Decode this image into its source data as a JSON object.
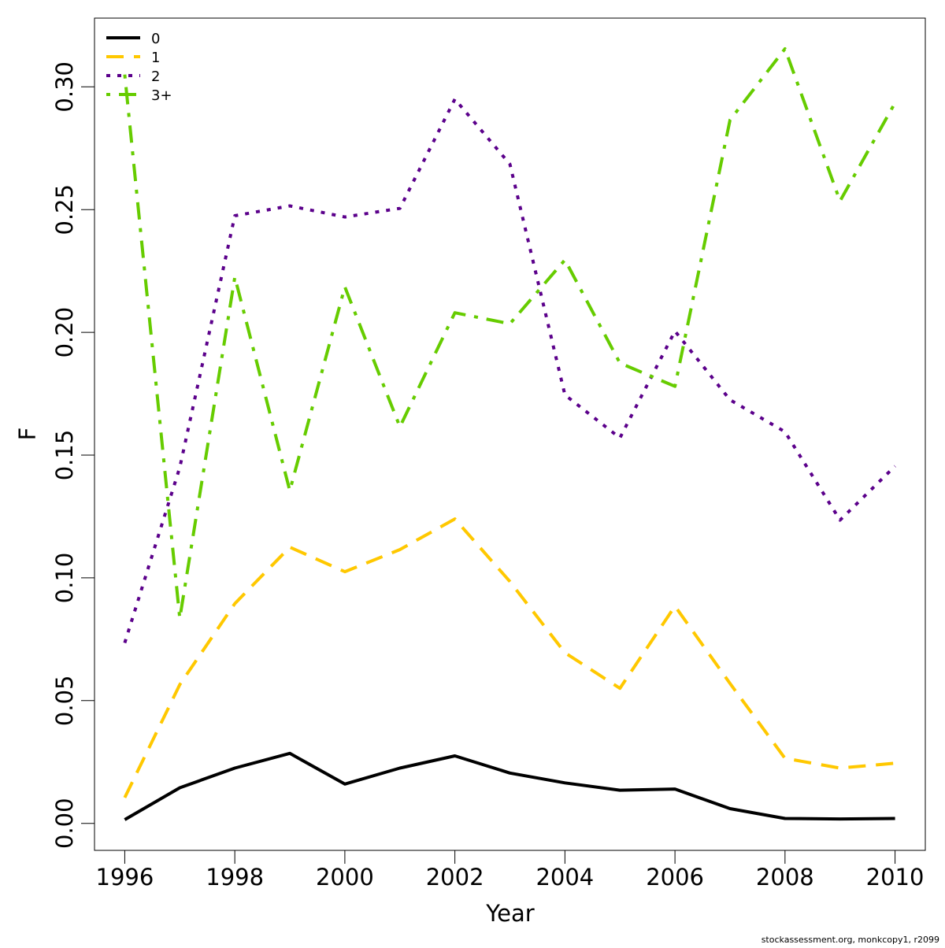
{
  "chart_data": {
    "type": "line",
    "xlabel": "Year",
    "ylabel": "F",
    "xlim": [
      1995.45,
      2010.55
    ],
    "ylim": [
      -0.011,
      0.328
    ],
    "x_ticks": [
      "1996",
      "1998",
      "2000",
      "2002",
      "2004",
      "2006",
      "2008",
      "2010"
    ],
    "y_ticks": [
      "0.00",
      "0.05",
      "0.10",
      "0.15",
      "0.20",
      "0.25",
      "0.30"
    ],
    "legend_position": "top-left",
    "grid": false,
    "x": [
      1996,
      1997,
      1998,
      1999,
      2000,
      2001,
      2002,
      2003,
      2004,
      2005,
      2006,
      2007,
      2008,
      2009,
      2010
    ],
    "series": [
      {
        "name": "0",
        "color": "#000000",
        "style": "solid",
        "values": [
          0.0015,
          0.0145,
          0.0225,
          0.0285,
          0.016,
          0.0225,
          0.0275,
          0.0205,
          0.0165,
          0.0135,
          0.014,
          0.006,
          0.002,
          0.0018,
          0.002
        ]
      },
      {
        "name": "1",
        "color": "#FFC800",
        "style": "dashed",
        "values": [
          0.0105,
          0.0565,
          0.0895,
          0.1125,
          0.1025,
          0.1115,
          0.124,
          0.0985,
          0.0695,
          0.055,
          0.0885,
          0.057,
          0.0265,
          0.0225,
          0.0245
        ]
      },
      {
        "name": "2",
        "color": "#5B008B",
        "style": "dotted",
        "values": [
          0.0735,
          0.145,
          0.2475,
          0.2515,
          0.247,
          0.2505,
          0.295,
          0.2685,
          0.1745,
          0.157,
          0.2005,
          0.1725,
          0.1595,
          0.1235,
          0.1455
        ]
      },
      {
        "name": "3+",
        "color": "#66CC00",
        "style": "dashdot",
        "values": [
          0.305,
          0.0835,
          0.2225,
          0.1355,
          0.2185,
          0.1615,
          0.208,
          0.2035,
          0.2295,
          0.1875,
          0.178,
          0.2865,
          0.3155,
          0.2535,
          0.2935
        ]
      }
    ]
  },
  "footer": {
    "text": "stockassessment.org, monkcopy1, r2099"
  }
}
